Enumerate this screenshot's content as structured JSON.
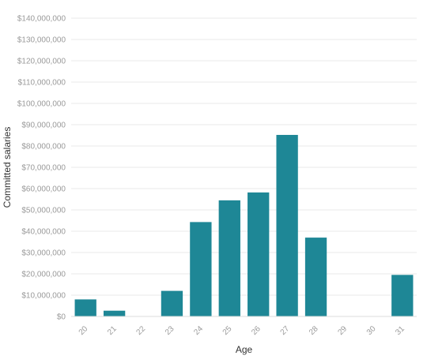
{
  "chart_data": {
    "type": "bar",
    "xlabel": "Age",
    "ylabel": "Committed salaries",
    "categories": [
      "20",
      "21",
      "22",
      "23",
      "24",
      "25",
      "26",
      "27",
      "28",
      "29",
      "30",
      "31"
    ],
    "values": [
      8000000,
      2700000,
      0,
      12000000,
      44300000,
      54500000,
      58200000,
      85200000,
      37000000,
      0,
      0,
      19500000
    ],
    "ylim": [
      0,
      140000000
    ],
    "yticks": [
      0,
      10000000,
      20000000,
      30000000,
      40000000,
      50000000,
      60000000,
      70000000,
      80000000,
      90000000,
      100000000,
      110000000,
      120000000,
      130000000,
      140000000
    ],
    "ytick_labels": [
      "$0",
      "$10,000,000",
      "$20,000,000",
      "$30,000,000",
      "$40,000,000",
      "$50,000,000",
      "$60,000,000",
      "$70,000,000",
      "$80,000,000",
      "$90,000,000",
      "$100,000,000",
      "$110,000,000",
      "$120,000,000",
      "$130,000,000",
      "$140,000,000"
    ],
    "grid": true,
    "legend": "none",
    "colors": {
      "bar": "#1e8796",
      "grid": "#e9e9e9",
      "tick_text": "#9a9a9a",
      "axis_title": "#333333"
    }
  }
}
